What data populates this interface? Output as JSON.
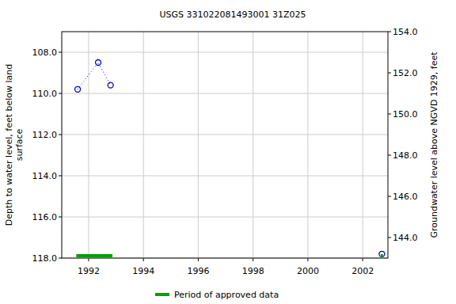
{
  "chart_data": {
    "type": "scatter",
    "title": "USGS 331022081493001 31Z025",
    "y_label": [
      "Depth to water level, feet below land",
      "surface"
    ],
    "y2_label": "Groundwater level above NGVD 1929, feet",
    "xlim": [
      1991.02,
      2002.92
    ],
    "xticks": [
      1992,
      1994,
      1996,
      1998,
      2000,
      2002
    ],
    "ylim": [
      118,
      107
    ],
    "yticks": [
      {
        "value": 108,
        "label": "108.0"
      },
      {
        "value": 110,
        "label": "110.0"
      },
      {
        "value": 112,
        "label": "112.0"
      },
      {
        "value": 114,
        "label": "114.0"
      },
      {
        "value": 116,
        "label": "116.0"
      },
      {
        "value": 118,
        "label": "118.0"
      }
    ],
    "y2lim": [
      143,
      154
    ],
    "y2ticks": [
      {
        "value": 144,
        "label": "144.0"
      },
      {
        "value": 146,
        "label": "146.0"
      },
      {
        "value": 148,
        "label": "148.0"
      },
      {
        "value": 150,
        "label": "150.0"
      },
      {
        "value": 152,
        "label": "152.0"
      },
      {
        "value": 154,
        "label": "154.0"
      }
    ],
    "grid": true,
    "legend": "bottom",
    "series": [
      {
        "type": "line",
        "color": "#0000cc",
        "marker": "open-circle",
        "line_style": "dotted",
        "x": [
          1991.6,
          1992.35,
          1992.8,
          null,
          2002.7
        ],
        "values": [
          109.8,
          108.5,
          109.6,
          null,
          117.8
        ]
      },
      {
        "type": "period",
        "name": "Period of approved data",
        "color": "#00a000",
        "x": [
          [
            1991.55,
            1992.87
          ],
          [
            2002.66,
            2002.74
          ]
        ]
      }
    ]
  }
}
